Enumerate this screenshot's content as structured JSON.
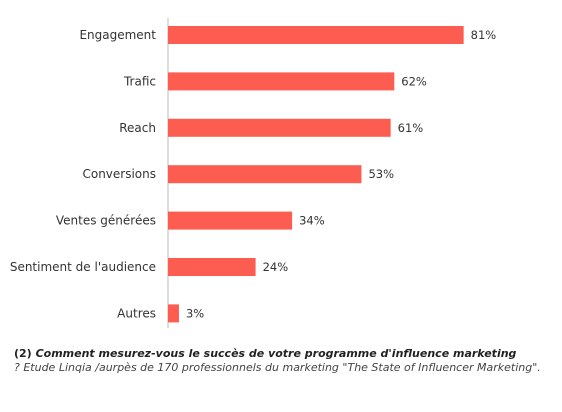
{
  "colors": {
    "bar": "#fd5d50",
    "axis": "#bbbbbb"
  },
  "chart_data": {
    "type": "bar",
    "orientation": "horizontal",
    "categories": [
      "Engagement",
      "Trafic",
      "Reach",
      "Conversions",
      "Ventes générées",
      "Sentiment de l'audience",
      "Autres"
    ],
    "values": [
      81,
      62,
      61,
      53,
      34,
      24,
      3
    ],
    "value_labels": [
      "81%",
      "62%",
      "61%",
      "53%",
      "34%",
      "24%",
      "3%"
    ],
    "xlim": [
      0,
      100
    ],
    "grid": false,
    "legend": "none"
  },
  "caption": {
    "number": "(2)",
    "question": "Comment mesurez-vous le succès de votre programme d'influence marketing",
    "source": "?  Etude Linqia /aurpès de 170 professionnels du marketing \"The State of Influencer Marketing\"."
  }
}
